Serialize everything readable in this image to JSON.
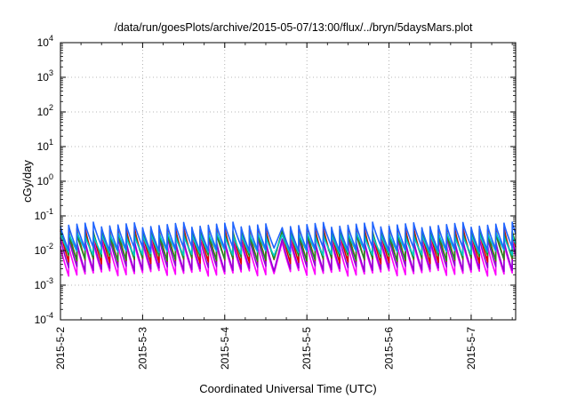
{
  "chart_data": {
    "type": "line",
    "title": "/data/run/goesPlots/archive/2015-05-07/13:00/flux/../bryn/5daysMars.plot",
    "xlabel": "Coordinated Universal Time (UTC)",
    "ylabel": "cGy/day",
    "yscale": "log",
    "ylim": [
      0.0001,
      10000
    ],
    "xlim": [
      "2015-05-02 00:00",
      "2015-05-07 13:00"
    ],
    "grid": true,
    "x_ticks": [
      "2015-5-2",
      "2015-5-3",
      "2015-5-4",
      "2015-5-5",
      "2015-5-6",
      "2015-5-7"
    ],
    "y_ticks": [
      {
        "base": "10",
        "exp": "-4",
        "value": 0.0001
      },
      {
        "base": "10",
        "exp": "-3",
        "value": 0.001
      },
      {
        "base": "10",
        "exp": "-2",
        "value": 0.01
      },
      {
        "base": "10",
        "exp": "-1",
        "value": 0.1
      },
      {
        "base": "10",
        "exp": "0",
        "value": 1
      },
      {
        "base": "10",
        "exp": "1",
        "value": 10
      },
      {
        "base": "10",
        "exp": "2",
        "value": 100
      },
      {
        "base": "10",
        "exp": "3",
        "value": 1000
      },
      {
        "base": "10",
        "exp": "4",
        "value": 10000
      }
    ],
    "oscillation": {
      "cycles_per_day": 10,
      "gap_start": "2015-05-04 14:00",
      "gap_end": "2015-05-04 15:12"
    },
    "series": [
      {
        "color": "#ff00ff",
        "peak": 0.016,
        "trough": 0.0022
      },
      {
        "color": "#9400d3",
        "peak": 0.022,
        "trough": 0.003
      },
      {
        "color": "#dd0000",
        "peak": 0.04,
        "trough": 0.005
      },
      {
        "color": "#228b22",
        "peak": 0.034,
        "trough": 0.006
      },
      {
        "color": "#00c8c8",
        "peak": 0.03,
        "trough": 0.0085
      },
      {
        "color": "#1e64ff",
        "peak": 0.055,
        "trough": 0.011
      }
    ]
  }
}
